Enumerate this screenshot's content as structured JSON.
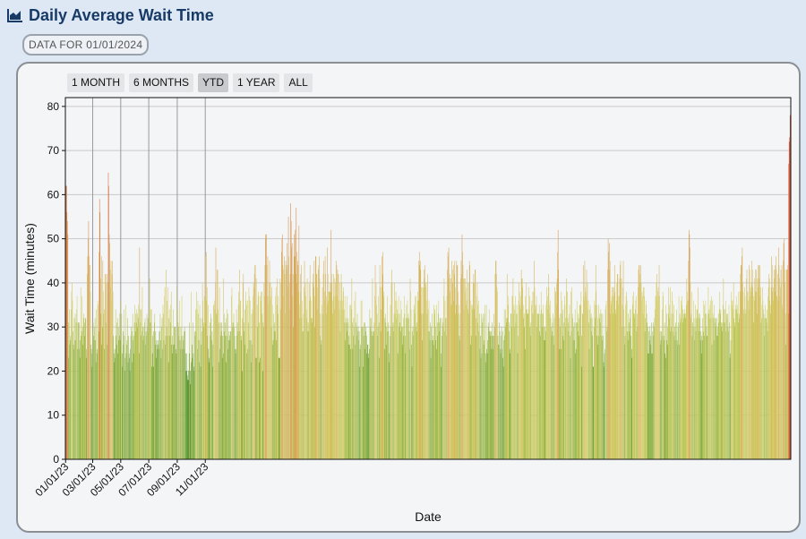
{
  "header": {
    "title": "Daily Average Wait Time",
    "icon": "area-chart-icon"
  },
  "badge": {
    "text": "DATA FOR 01/01/2024"
  },
  "range_buttons": [
    {
      "label": "1 MONTH",
      "active": false
    },
    {
      "label": "6 MONTHS",
      "active": false
    },
    {
      "label": "YTD",
      "active": true
    },
    {
      "label": "1 YEAR",
      "active": false
    },
    {
      "label": "ALL",
      "active": false
    }
  ],
  "colors": {
    "low": "#5b9a3c",
    "mid": "#d5d46b",
    "high": "#d85d3d"
  },
  "chart_data": {
    "type": "bar",
    "xlabel": "Date",
    "ylabel": "Wait Time (minutes)",
    "ylim": [
      0,
      82
    ],
    "yticks": [
      0,
      10,
      20,
      30,
      40,
      50,
      60,
      70,
      80
    ],
    "x_start": "01/01/23",
    "x_ticks": [
      "01/01/23",
      "03/01/23",
      "05/01/23",
      "07/01/23",
      "09/01/23",
      "11/01/23"
    ],
    "grid": true,
    "values": [
      45,
      62,
      62,
      56,
      54,
      51,
      31,
      23,
      34,
      26,
      27,
      28,
      34,
      38,
      40,
      36,
      29,
      26,
      25,
      32,
      27,
      33,
      27,
      31,
      34,
      37,
      25,
      31,
      31,
      25,
      31,
      23,
      27,
      39,
      28,
      29,
      37,
      26,
      30,
      32,
      33,
      28,
      31,
      32,
      32,
      23,
      25,
      42,
      46,
      50,
      54,
      46,
      44,
      44,
      38,
      26,
      25,
      21,
      24,
      29,
      31,
      28,
      27,
      30,
      32,
      27,
      22,
      34,
      24,
      25,
      36,
      35,
      29,
      47,
      59,
      56,
      33,
      41,
      46,
      26,
      30,
      45,
      38,
      33,
      34,
      25,
      42,
      42,
      31,
      40,
      42,
      26,
      40,
      65,
      62,
      51,
      49,
      43,
      39,
      45,
      36,
      42,
      45,
      38,
      28,
      24,
      22,
      25,
      23,
      34,
      28,
      26,
      31,
      32,
      24,
      30,
      27,
      28,
      33,
      27,
      25,
      36,
      33,
      24,
      21,
      29,
      26,
      34,
      28,
      20,
      23,
      35,
      24,
      26,
      27,
      32,
      22,
      28,
      24,
      23,
      20,
      25,
      28,
      30,
      29,
      22,
      33,
      27,
      28,
      24,
      31,
      35,
      29,
      33,
      31,
      34,
      33,
      30,
      32,
      35,
      24,
      48,
      31,
      34,
      28,
      34,
      29,
      39,
      30,
      27,
      28,
      30,
      31,
      32,
      26,
      29,
      28,
      33,
      30,
      32,
      29,
      29,
      35,
      41,
      31,
      34,
      31,
      34,
      21,
      24,
      28,
      29,
      21,
      31,
      33,
      26,
      29,
      23,
      27,
      25,
      26,
      27,
      26,
      25,
      29,
      29,
      33,
      27,
      23,
      30,
      32,
      25,
      35,
      33,
      27,
      37,
      39,
      26,
      28,
      43,
      30,
      36,
      28,
      39,
      22,
      32,
      34,
      28,
      31,
      35,
      38,
      26,
      24,
      28,
      34,
      26,
      30,
      26,
      30,
      30,
      25,
      24,
      39,
      24,
      34,
      31,
      30,
      28,
      36,
      27,
      25,
      30,
      28,
      37,
      25,
      28,
      27,
      25,
      29,
      30,
      29,
      24,
      20,
      24,
      20,
      19,
      18,
      18,
      20,
      24,
      31,
      20,
      17,
      38,
      22,
      26,
      23,
      31,
      24,
      21,
      20,
      29,
      28,
      34,
      29,
      38,
      34,
      25,
      36,
      33,
      27,
      22,
      35,
      32,
      21,
      26,
      29,
      32,
      40,
      36,
      31,
      30,
      37,
      36,
      46,
      31,
      47,
      36,
      39,
      28,
      35,
      25,
      23,
      22,
      31,
      28,
      33,
      32,
      27,
      29,
      21,
      26,
      35,
      35,
      36,
      34,
      40,
      48,
      33,
      33,
      43,
      43,
      34,
      31,
      22,
      39,
      25,
      31,
      28,
      29,
      31,
      23,
      28,
      24,
      41,
      33,
      29,
      31,
      28,
      22,
      32,
      34,
      28,
      33,
      25,
      27,
      29,
      28,
      27,
      29,
      29,
      37,
      39,
      30,
      31,
      31,
      33,
      30,
      28,
      25,
      24,
      25,
      34,
      28,
      31,
      29,
      35,
      38,
      29,
      43,
      36,
      36,
      27,
      28,
      20,
      32,
      40,
      42,
      29,
      31,
      34,
      26,
      38,
      36,
      24,
      35,
      36,
      25,
      31,
      39,
      37,
      27,
      36,
      27,
      22,
      33,
      26,
      34,
      37,
      40,
      39,
      42,
      44,
      44,
      23,
      41,
      23,
      35,
      30,
      37,
      38,
      31,
      22,
      37,
      23,
      38,
      36,
      38,
      33,
      20,
      31,
      30,
      40,
      37,
      44,
      51,
      50,
      51,
      44,
      37,
      46,
      35,
      37,
      40,
      45,
      36,
      40,
      37,
      30,
      39,
      35,
      26,
      27,
      33,
      29,
      31,
      29,
      37,
      39,
      27,
      35,
      41,
      33,
      37,
      23,
      23,
      23,
      41,
      34,
      40,
      47,
      50,
      51,
      44,
      37,
      43,
      46,
      42,
      33,
      45,
      44,
      43,
      49,
      44,
      39,
      55,
      46,
      34,
      40,
      42,
      58,
      54,
      48,
      49,
      37,
      42,
      30,
      46,
      51,
      46,
      52,
      42,
      57,
      47,
      40,
      45,
      44,
      38,
      53,
      35,
      32,
      42,
      38,
      44,
      32,
      36,
      29,
      29,
      33,
      39,
      45,
      38,
      40,
      37,
      34,
      32,
      41,
      29,
      31,
      29,
      40,
      36,
      44,
      37,
      36,
      32,
      31,
      32,
      40,
      42,
      39,
      45,
      37,
      30,
      46,
      46,
      42,
      42,
      39,
      34,
      43,
      44,
      46,
      41,
      28,
      33,
      26,
      27,
      35,
      39,
      33,
      42,
      45,
      36,
      38,
      46,
      42,
      33,
      37,
      35,
      48,
      42,
      36,
      38,
      38,
      38,
      40,
      38,
      52,
      42,
      40,
      33,
      36,
      42,
      37,
      34,
      41,
      40,
      37,
      45,
      44,
      37,
      43,
      42,
      42,
      36,
      34,
      40,
      29,
      36,
      42,
      40,
      34,
      36,
      38,
      39,
      34,
      31,
      37,
      27,
      32,
      31,
      29,
      37,
      31,
      32,
      26,
      28,
      26,
      35,
      25,
      35,
      34,
      41,
      31,
      25,
      28,
      32,
      30,
      36,
      26,
      38,
      31,
      30,
      28,
      33,
      29,
      30,
      27,
      29,
      21,
      25,
      26,
      36,
      30,
      36,
      30,
      30,
      21,
      28,
      31,
      25,
      31,
      29,
      30,
      28,
      24,
      26,
      26,
      23,
      24,
      25,
      34,
      30,
      32,
      32,
      29,
      28,
      41,
      28,
      29,
      29,
      31,
      37,
      44,
      36,
      40,
      35,
      33,
      28,
      30,
      37,
      31,
      23,
      44,
      39,
      29,
      34,
      39,
      46,
      42,
      47,
      37,
      38,
      32,
      25,
      33,
      31,
      26,
      30,
      37,
      29,
      31,
      29,
      22,
      24,
      28,
      35,
      30,
      40,
      43,
      40,
      30,
      31,
      29,
      33,
      40,
      33,
      36,
      38,
      32,
      36,
      34,
      24,
      33,
      37,
      30,
      33,
      31,
      29,
      36,
      34,
      30,
      26,
      30,
      28,
      32,
      37,
      33,
      28,
      24,
      32,
      35,
      32,
      36,
      32,
      33,
      32,
      29,
      25,
      41,
      38,
      34,
      26,
      21,
      29,
      30,
      28,
      34,
      35,
      33,
      37,
      30,
      37,
      31,
      29,
      36,
      38,
      36,
      45,
      47,
      44,
      45,
      43,
      39,
      33,
      27,
      39,
      33,
      39,
      43,
      41,
      44,
      40,
      39,
      40,
      36,
      33,
      42,
      34,
      29,
      36,
      29,
      27,
      31,
      23,
      30,
      27,
      33,
      28,
      27,
      26,
      35,
      33,
      34,
      30,
      27,
      35,
      25,
      31,
      28,
      33,
      36,
      31,
      29,
      32,
      32,
      21,
      24,
      28,
      32,
      31,
      30,
      37,
      41,
      29,
      36,
      32,
      32,
      28,
      37,
      43,
      47,
      46,
      48,
      41,
      42,
      38,
      35,
      41,
      35,
      45,
      43,
      40,
      36,
      44,
      42,
      45,
      39,
      33,
      35,
      45,
      44,
      44,
      33,
      38,
      35,
      28,
      27,
      33,
      41,
      45,
      42,
      51,
      47,
      44,
      41,
      34,
      41,
      38,
      41,
      39,
      35,
      36,
      43,
      40,
      34,
      33,
      40,
      45,
      44,
      36,
      26,
      28,
      35,
      35,
      34,
      40,
      42,
      34,
      40,
      43,
      43,
      28,
      32,
      37,
      40,
      31,
      35,
      36,
      29,
      33,
      25,
      28,
      23,
      33,
      24,
      31,
      32,
      33,
      26,
      27,
      33,
      35,
      24,
      22,
      35,
      25,
      24,
      27,
      30,
      31,
      34,
      29,
      29,
      28,
      25,
      29,
      31,
      28,
      28,
      25,
      33,
      28,
      30,
      42,
      45,
      45,
      42,
      39,
      38,
      28,
      26,
      26,
      31,
      29,
      25,
      24,
      28,
      30,
      25,
      29,
      23,
      21,
      27,
      34,
      28,
      30,
      34,
      31,
      32,
      42,
      32,
      35,
      37,
      31,
      29,
      24,
      25,
      33,
      33,
      30,
      37,
      37,
      41,
      33,
      35,
      30,
      34,
      37,
      31,
      33,
      35,
      33,
      24,
      28,
      36,
      40,
      38,
      35,
      34,
      37,
      43,
      41,
      41,
      39,
      35,
      32,
      33,
      30,
      25,
      37,
      34,
      40,
      34,
      33,
      33,
      33,
      39,
      34,
      37,
      30,
      28,
      31,
      35,
      36,
      33,
      38,
      33,
      38,
      45,
      39,
      34,
      35,
      35,
      37,
      30,
      33,
      33,
      33,
      33,
      35,
      29,
      28,
      33,
      38,
      34,
      30,
      33,
      33,
      35,
      30,
      27,
      27,
      30,
      29,
      35,
      39,
      36,
      37,
      34,
      42,
      39,
      35,
      33,
      36,
      32,
      30,
      28,
      29,
      31,
      33,
      28,
      26,
      32,
      39,
      38,
      38,
      35,
      40,
      41,
      47,
      52,
      43,
      32,
      25,
      30,
      33,
      25,
      38,
      33,
      36,
      28,
      34,
      31,
      27,
      37,
      35,
      30,
      32,
      41,
      38,
      38,
      32,
      29,
      31,
      33,
      35,
      28,
      23,
      38,
      29,
      39,
      33,
      32,
      27,
      30,
      31,
      27,
      34,
      24,
      25,
      31,
      36,
      31,
      29,
      33,
      32,
      28,
      35,
      35,
      35,
      38,
      28,
      21,
      33,
      33,
      44,
      37,
      36,
      45,
      39,
      38,
      37,
      43,
      36,
      40,
      34,
      36,
      31,
      25,
      34,
      35,
      32,
      33,
      29,
      32,
      28,
      21,
      21,
      30,
      36,
      35,
      32,
      44,
      38,
      35,
      28,
      26,
      32,
      35,
      28,
      32,
      33,
      31,
      34,
      33,
      28,
      27,
      33,
      28,
      22,
      21,
      24,
      25,
      34,
      35,
      36,
      29,
      30,
      43,
      50,
      47,
      43,
      49,
      45,
      33,
      36,
      35,
      37,
      39,
      33,
      39,
      39,
      37,
      44,
      38,
      34,
      33,
      36,
      40,
      42,
      42,
      37,
      35,
      37,
      41,
      44,
      45,
      40,
      41,
      30,
      35,
      39,
      45,
      34,
      30,
      26,
      28,
      35,
      37,
      38,
      36,
      29,
      27,
      33,
      31,
      29,
      34,
      32,
      34,
      28,
      25,
      23,
      35,
      37,
      38,
      33,
      33,
      32,
      34,
      36,
      37,
      29,
      33,
      30,
      39,
      43,
      44,
      44,
      40,
      42,
      44,
      40,
      36,
      38,
      37,
      33,
      39,
      39,
      37,
      29,
      32,
      35,
      36,
      33,
      31,
      30,
      24,
      24,
      29,
      27,
      30,
      28,
      26,
      31,
      24,
      24,
      29,
      31,
      28,
      30,
      32,
      34,
      37,
      37,
      40,
      42,
      36,
      38,
      39,
      37,
      44,
      37,
      29,
      26,
      27,
      29,
      28,
      34,
      38,
      37,
      28,
      27,
      31,
      24,
      23,
      35,
      27,
      33,
      26,
      30,
      39,
      33,
      35,
      32,
      39,
      29,
      30,
      33,
      38,
      36,
      29,
      33,
      35,
      28,
      30,
      27,
      31,
      29,
      34,
      27,
      26,
      30,
      31,
      37,
      26,
      33,
      31,
      32,
      36,
      35,
      37,
      31,
      34,
      33,
      32,
      33,
      34,
      32,
      33,
      35,
      41,
      38,
      36,
      36,
      45,
      52,
      51,
      48,
      40,
      32,
      33,
      38,
      28,
      31,
      30,
      36,
      32,
      27,
      30,
      35,
      29,
      32,
      34,
      34,
      32,
      39,
      33,
      29,
      33,
      32,
      27,
      29,
      24,
      28,
      27,
      32,
      36,
      29,
      35,
      28,
      33,
      36,
      33,
      30,
      28,
      28,
      33,
      39,
      33,
      34,
      32,
      35,
      36,
      32,
      37,
      26,
      36,
      33,
      32,
      27,
      35,
      32,
      31,
      32,
      30,
      32,
      28,
      28,
      30,
      33,
      31,
      34,
      38,
      33,
      34,
      31,
      30,
      29,
      31,
      35,
      41,
      31,
      34,
      31,
      34,
      36,
      29,
      33,
      32,
      33,
      30,
      29,
      35,
      31,
      23,
      24,
      27,
      38,
      36,
      35,
      36,
      34,
      40,
      32,
      30,
      31,
      34,
      35,
      37,
      34,
      33,
      35,
      31,
      38,
      33,
      32,
      38,
      42,
      44,
      44,
      46,
      48,
      40,
      38,
      34,
      33,
      39,
      37,
      33,
      34,
      41,
      43,
      38,
      38,
      36,
      34,
      44,
      43,
      37,
      39,
      38,
      40,
      45,
      43,
      39,
      31,
      37,
      36,
      41,
      38,
      43,
      43,
      38,
      33,
      41,
      44,
      39,
      44,
      41,
      44,
      37,
      39,
      31,
      32,
      35,
      39,
      36,
      34,
      33,
      28,
      32,
      35,
      32,
      32,
      31,
      34,
      29,
      37,
      39,
      42,
      41,
      36,
      33,
      35,
      39,
      46,
      44,
      38,
      39,
      36,
      43,
      41,
      44,
      38,
      46,
      43,
      37,
      37,
      42,
      36,
      48,
      44,
      41,
      37,
      39,
      43,
      40,
      44,
      35,
      34,
      45,
      49,
      50,
      43,
      40,
      33,
      26,
      43,
      43,
      43,
      44,
      33,
      67,
      72,
      73,
      78,
      64
    ]
  }
}
